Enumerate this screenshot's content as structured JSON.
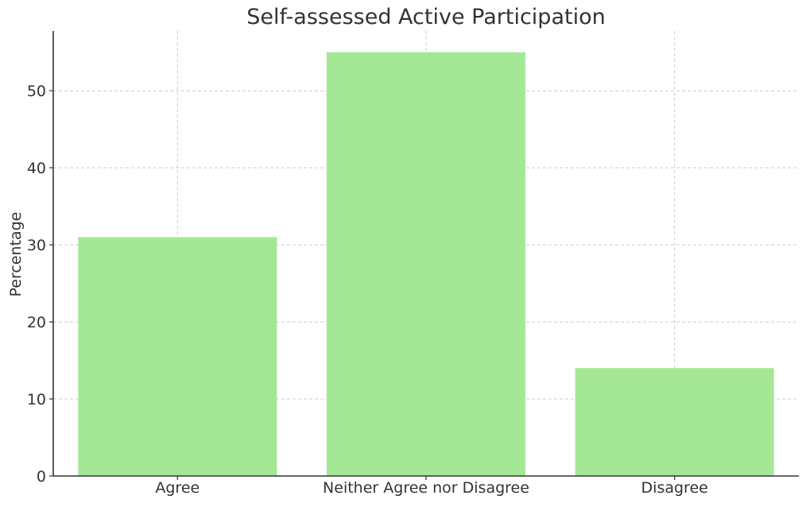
{
  "chart_data": {
    "type": "bar",
    "title": "Self-assessed Active Participation",
    "xlabel": "",
    "ylabel": "Percentage",
    "categories": [
      "Agree",
      "Neither Agree nor Disagree",
      "Disagree"
    ],
    "values": [
      31,
      55,
      14
    ],
    "ylim": [
      0,
      57.75
    ],
    "yticks": [
      0,
      10,
      20,
      30,
      40,
      50
    ],
    "grid": true,
    "bar_color": "#a4e896",
    "grid_color": "#cccccc",
    "text_color": "#333333"
  }
}
